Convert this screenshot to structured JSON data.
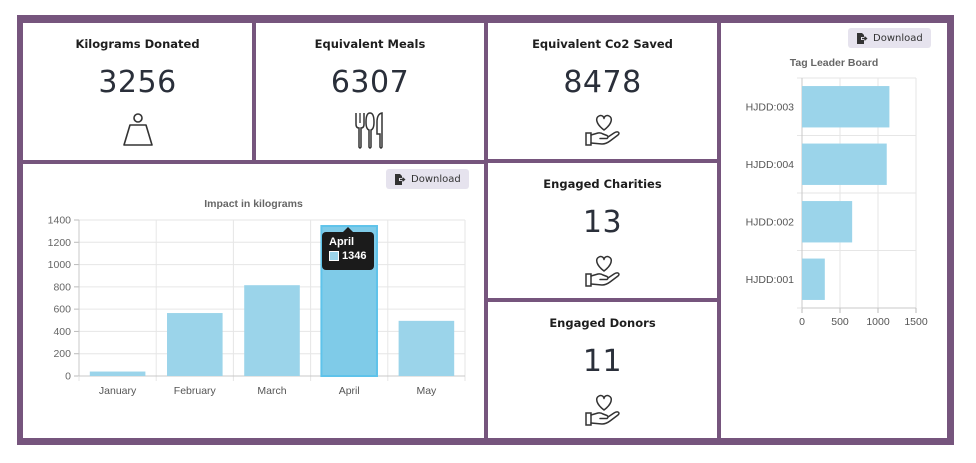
{
  "cards": {
    "kilograms": {
      "title": "Kilograms Donated",
      "value": "3256",
      "icon": "weight-icon"
    },
    "meals": {
      "title": "Equivalent Meals",
      "value": "6307",
      "icon": "cutlery-icon"
    },
    "co2": {
      "title": "Equivalent Co2 Saved",
      "value": "8478",
      "icon": "heart-hand-icon"
    },
    "charities": {
      "title": "Engaged Charities",
      "value": "13",
      "icon": "heart-hand-icon"
    },
    "donors": {
      "title": "Engaged Donors",
      "value": "11",
      "icon": "heart-hand-icon"
    }
  },
  "download_label": "Download",
  "colors": {
    "frame": "#76557d",
    "bar": "#9bd4ea",
    "bar_hover": "#7fcbe8",
    "button_bg": "#e6e3ee"
  },
  "impact_chart": {
    "tooltip": {
      "title": "April",
      "value": "1346"
    },
    "chart_data": {
      "type": "bar",
      "title": "Impact in kilograms",
      "categories": [
        "January",
        "February",
        "March",
        "April",
        "May"
      ],
      "values": [
        40,
        565,
        815,
        1346,
        495
      ],
      "ylim": [
        0,
        1400
      ],
      "yticks": [
        0,
        200,
        400,
        600,
        800,
        1000,
        1200,
        1400
      ],
      "grid": true
    }
  },
  "tag_chart": {
    "chart_data": {
      "type": "bar",
      "orientation": "horizontal",
      "title": "Tag Leader Board",
      "categories": [
        "HJDD:003",
        "HJDD:004",
        "HJDD:002",
        "HJDD:001"
      ],
      "values": [
        1150,
        1115,
        660,
        300
      ],
      "xlim": [
        0,
        1500
      ],
      "xticks": [
        0,
        500,
        1000,
        1500
      ],
      "grid": true
    }
  }
}
